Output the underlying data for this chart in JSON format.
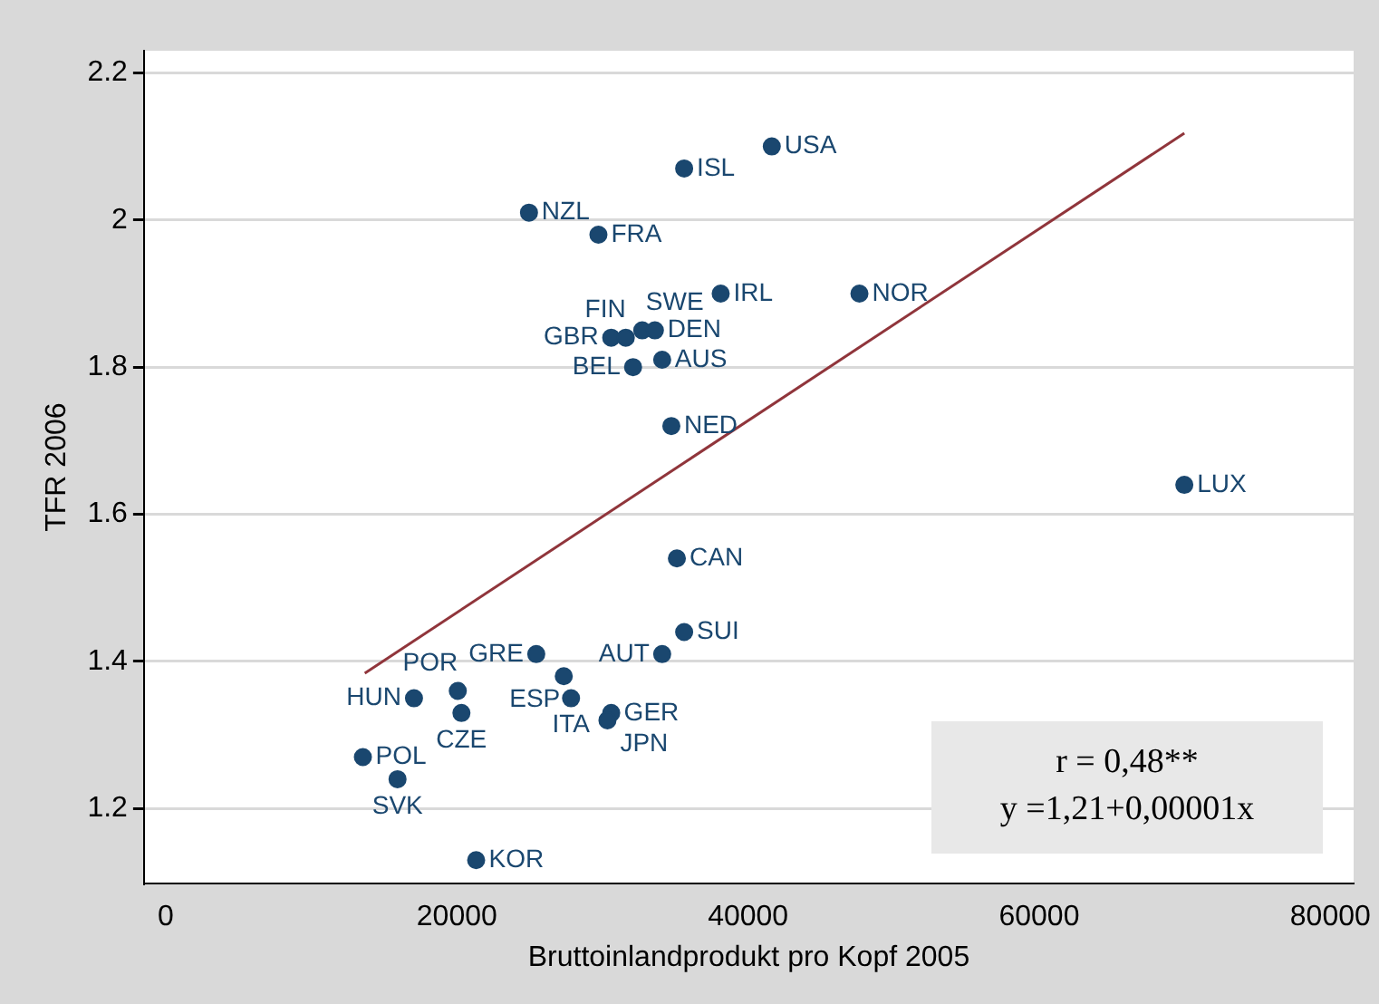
{
  "chart_data": {
    "type": "scatter",
    "xlabel": "Bruttoinlandprodukt pro Kopf 2005",
    "ylabel": "TFR 2006",
    "xlim": [
      -1500,
      81600
    ],
    "ylim": [
      1.098,
      2.23
    ],
    "xticks": [
      0,
      20000,
      40000,
      60000,
      80000
    ],
    "yticks": [
      1.2,
      1.4,
      1.6,
      1.8,
      2,
      2.2
    ],
    "grid": "y",
    "legend": false,
    "series": [
      {
        "marker": "circle",
        "color": "#1a476f",
        "x": [
          41630,
          35610,
          24950,
          29720,
          38120,
          47650,
          30600,
          31600,
          32730,
          33600,
          32100,
          34100,
          34730,
          69970,
          35110,
          35610,
          34100,
          25450,
          27340,
          27840,
          30600,
          30340,
          17050,
          20060,
          20310,
          13540,
          15920,
          21320
        ],
        "values": [
          2.1,
          2.07,
          2.01,
          1.98,
          1.9,
          1.9,
          1.84,
          1.84,
          1.85,
          1.85,
          1.8,
          1.81,
          1.72,
          1.64,
          1.54,
          1.44,
          1.41,
          1.41,
          1.38,
          1.35,
          1.33,
          1.32,
          1.35,
          1.36,
          1.33,
          1.27,
          1.24,
          1.13
        ]
      },
      {
        "type": "line",
        "color": "#90353b",
        "x": [
          13670,
          69970
        ],
        "values": [
          1.384,
          2.118
        ]
      }
    ],
    "annotations": [
      "r = 0,48**",
      "y =1,21+0,00001x",
      {
        "text": "USA",
        "x": 41630,
        "y": 2.1
      },
      {
        "text": "ISL",
        "x": 35610,
        "y": 2.07
      },
      {
        "text": "NZL",
        "x": 24950,
        "y": 2.01
      },
      {
        "text": "FRA",
        "x": 29720,
        "y": 1.98
      },
      {
        "text": "IRL",
        "x": 38120,
        "y": 1.9
      },
      {
        "text": "NOR",
        "x": 47650,
        "y": 1.9
      },
      {
        "text": "GBR",
        "x": 30600,
        "y": 1.84
      },
      {
        "text": "FIN",
        "x": 31600,
        "y": 1.84
      },
      {
        "text": "SWE",
        "x": 32730,
        "y": 1.85
      },
      {
        "text": "DEN",
        "x": 33600,
        "y": 1.85
      },
      {
        "text": "BEL",
        "x": 32100,
        "y": 1.8
      },
      {
        "text": "AUS",
        "x": 34100,
        "y": 1.81
      },
      {
        "text": "NED",
        "x": 34730,
        "y": 1.72
      },
      {
        "text": "LUX",
        "x": 69970,
        "y": 1.64
      },
      {
        "text": "CAN",
        "x": 35110,
        "y": 1.54
      },
      {
        "text": "SUI",
        "x": 35610,
        "y": 1.44
      },
      {
        "text": "AUT",
        "x": 34100,
        "y": 1.41
      },
      {
        "text": "GRE",
        "x": 25450,
        "y": 1.41
      },
      {
        "text": "ESP",
        "x": 27340,
        "y": 1.38
      },
      {
        "text": "ITA",
        "x": 27840,
        "y": 1.35
      },
      {
        "text": "GER",
        "x": 30600,
        "y": 1.33
      },
      {
        "text": "JPN",
        "x": 30340,
        "y": 1.32
      },
      {
        "text": "HUN",
        "x": 17050,
        "y": 1.35
      },
      {
        "text": "POR",
        "x": 20060,
        "y": 1.36
      },
      {
        "text": "CZE",
        "x": 20310,
        "y": 1.33
      },
      {
        "text": "POL",
        "x": 13540,
        "y": 1.27
      },
      {
        "text": "SVK",
        "x": 15920,
        "y": 1.24
      },
      {
        "text": "KOR",
        "x": 21320,
        "y": 1.13
      }
    ]
  }
}
